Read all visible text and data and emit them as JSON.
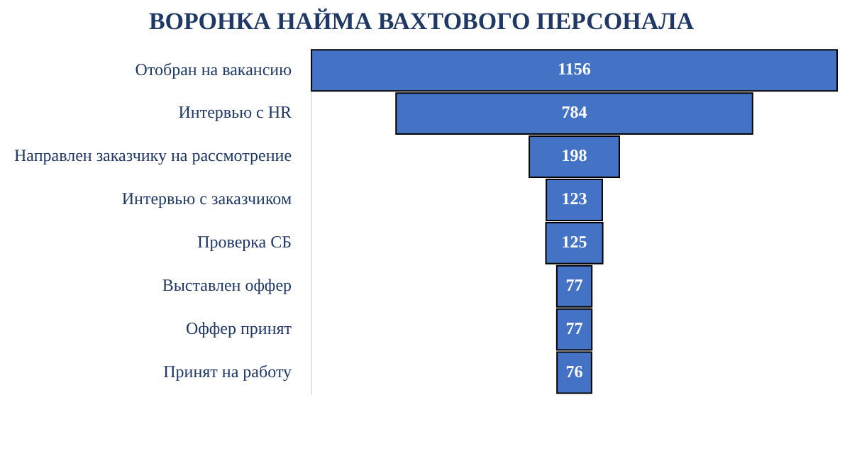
{
  "chart_data": {
    "type": "other",
    "title": "ВОРОНКА НАЙМА ВАХТОВОГО ПЕРСОНАЛА",
    "categories": [
      "Отобран на вакансию",
      "Интервью с HR",
      "Направлен заказчику на рассмотрение",
      "Интервью с заказчиком",
      "Проверка СБ",
      "Выставлен оффер",
      "Оффер принят",
      "Принят на работу"
    ],
    "values": [
      1156,
      784,
      198,
      123,
      125,
      77,
      77,
      76
    ],
    "color": "#4472c4",
    "data_labels": true
  }
}
